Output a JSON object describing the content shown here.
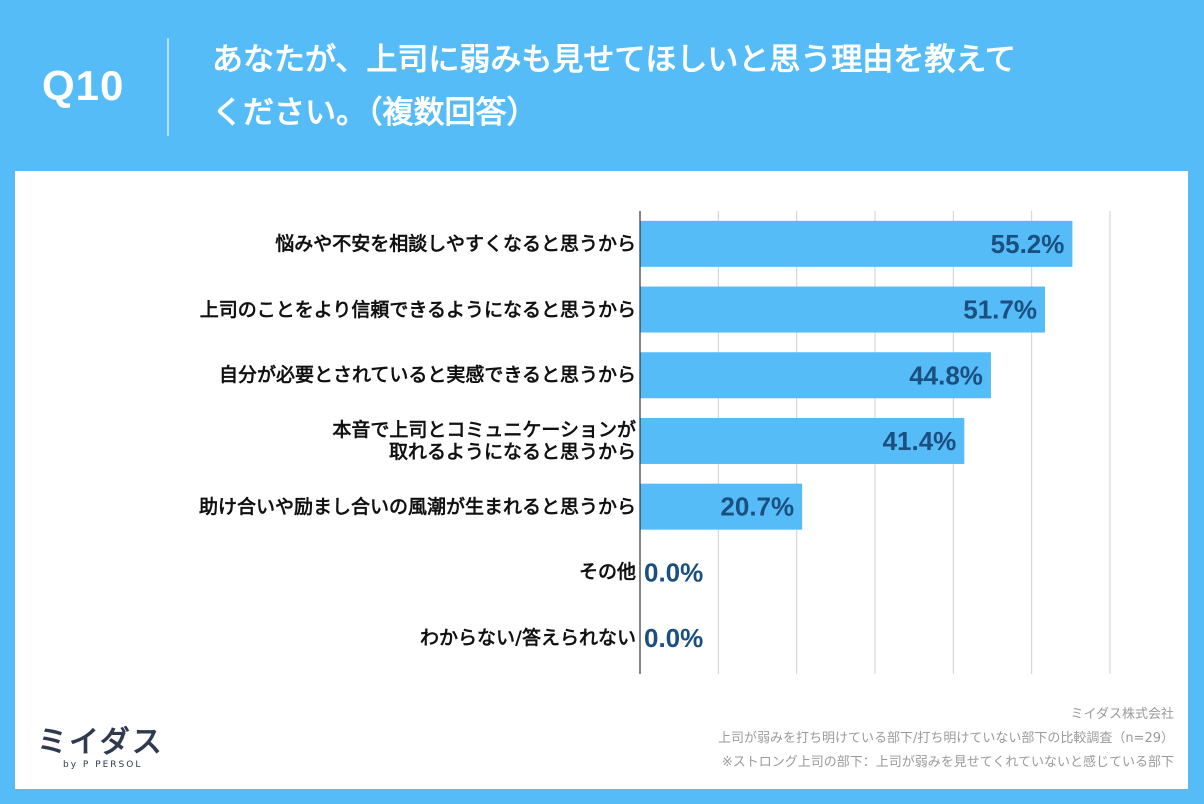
{
  "header": {
    "qnum": "Q10",
    "question_line1": "あなたが、上司に弱みも見せてほしいと思う理由を教えて",
    "question_line2": "ください。（複数回答）"
  },
  "chart_data": {
    "type": "bar",
    "orientation": "horizontal",
    "categories": [
      "悩みや不安を相談しやすくなると思うから",
      "上司のことをより信頼できるようになると思うから",
      "自分が必要とされていると実感できると思うから",
      "本音で上司とコミュニケーションが\n取れるようになると思うから",
      "助け合いや励まし合いの風潮が生まれると思うから",
      "その他",
      "わからない/答えられない"
    ],
    "values": [
      55.2,
      51.7,
      44.8,
      41.4,
      20.7,
      0.0,
      0.0
    ],
    "value_labels": [
      "55.2%",
      "51.7%",
      "44.8%",
      "41.4%",
      "20.7%",
      "0.0%",
      "0.0%"
    ],
    "xlim": [
      0,
      60
    ],
    "grid": true,
    "bar_color": "#55bcf7",
    "value_color": "#1a4f80"
  },
  "credit": {
    "company": "ミイダス株式会社",
    "survey": "上司が弱みを打ち明けている部下/打ち明けていない部下の比較調査（n=29）",
    "note": "※ストロング上司の部下：上司が弱みを見せてくれていないと感じている部下"
  },
  "logo": {
    "main": "ミイダス",
    "sub": "by P PERSOL"
  }
}
